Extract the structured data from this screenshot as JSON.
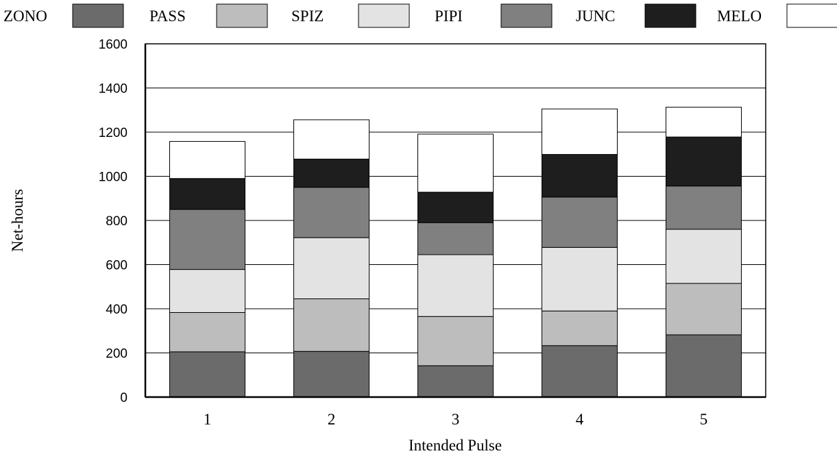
{
  "chart_data": {
    "type": "bar",
    "stacked": true,
    "xlabel": "Intended Pulse",
    "ylabel": "Net-hours",
    "ylim": [
      0,
      1600
    ],
    "yticks": [
      "0",
      "200",
      "400",
      "600",
      "800",
      "1000",
      "1200",
      "1400",
      "1600"
    ],
    "categories": [
      "1",
      "2",
      "3",
      "4",
      "5"
    ],
    "grid": true,
    "legend_position": "top",
    "series": [
      {
        "name": "ZONO",
        "color": "#6b6b6b",
        "values": [
          205,
          207,
          142,
          233,
          282
        ]
      },
      {
        "name": "PASS",
        "color": "#bdbdbd",
        "values": [
          178,
          238,
          223,
          157,
          233
        ]
      },
      {
        "name": "SPIZ",
        "color": "#e3e3e3",
        "values": [
          195,
          277,
          280,
          288,
          245
        ]
      },
      {
        "name": "PIPI",
        "color": "#808080",
        "values": [
          272,
          228,
          145,
          228,
          196
        ]
      },
      {
        "name": "JUNC",
        "color": "#1e1e1e",
        "values": [
          140,
          128,
          138,
          193,
          222
        ]
      },
      {
        "name": "MELO",
        "color": "#ffffff",
        "values": [
          168,
          178,
          263,
          206,
          135
        ]
      }
    ]
  }
}
